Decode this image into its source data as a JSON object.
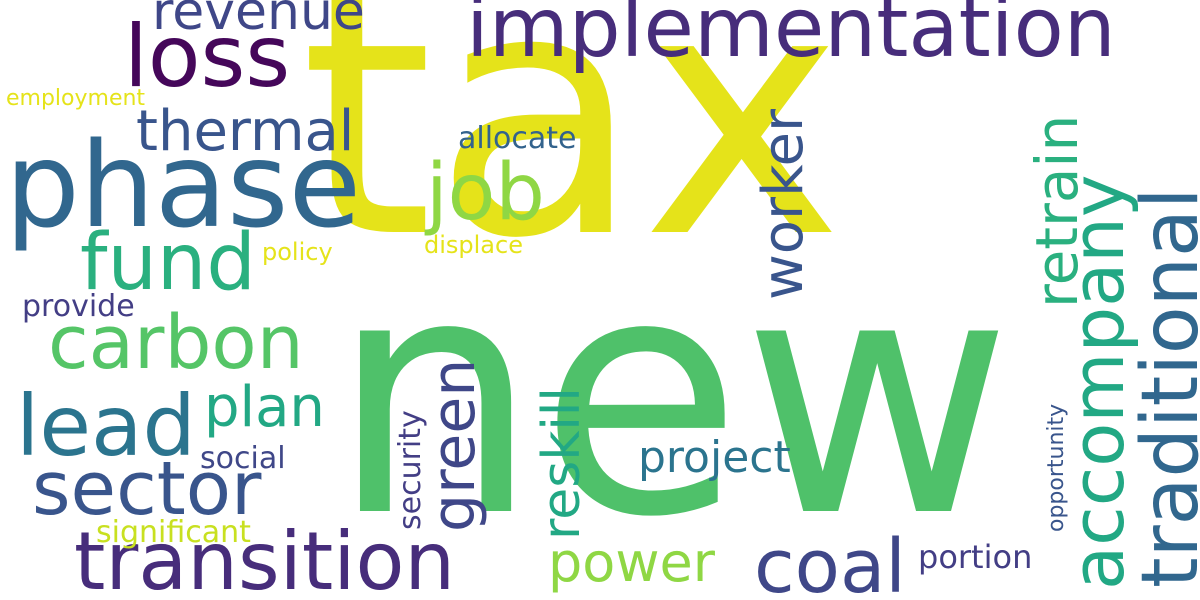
{
  "colors": {
    "yellow": "#e5e31a",
    "green": "#4fc16a",
    "lime": "#8fd744",
    "lightgreen": "#55c567",
    "teal": "#22a884",
    "tealgreen": "#2ab07f",
    "blue": "#31678e",
    "steel": "#33638d",
    "slate": "#39558c",
    "indigo": "#3f4788",
    "navy": "#433e85",
    "purple": "#472d7b",
    "darkpurple": "#45075a",
    "cyan": "#2b748e"
  },
  "words": {
    "tax": "tax",
    "new": "new",
    "implementation": "implementation",
    "phase": "phase",
    "loss": "loss",
    "revenue": "revenue",
    "thermal": "thermal",
    "job": "job",
    "fund": "fund",
    "carbon": "carbon",
    "lead": "lead",
    "plan": "plan",
    "sector": "sector",
    "transition": "transition",
    "coal": "coal",
    "power": "power",
    "project": "project",
    "green": "green",
    "reskill": "reskill",
    "worker": "worker",
    "retrain": "retrain",
    "accompany": "accompany",
    "traditional": "traditional",
    "allocate": "allocate",
    "displace": "displace",
    "policy": "policy",
    "provide": "provide",
    "social": "social",
    "security": "security",
    "significant": "significant",
    "employment": "employment",
    "portion": "portion",
    "opportunity": "opportunity"
  }
}
